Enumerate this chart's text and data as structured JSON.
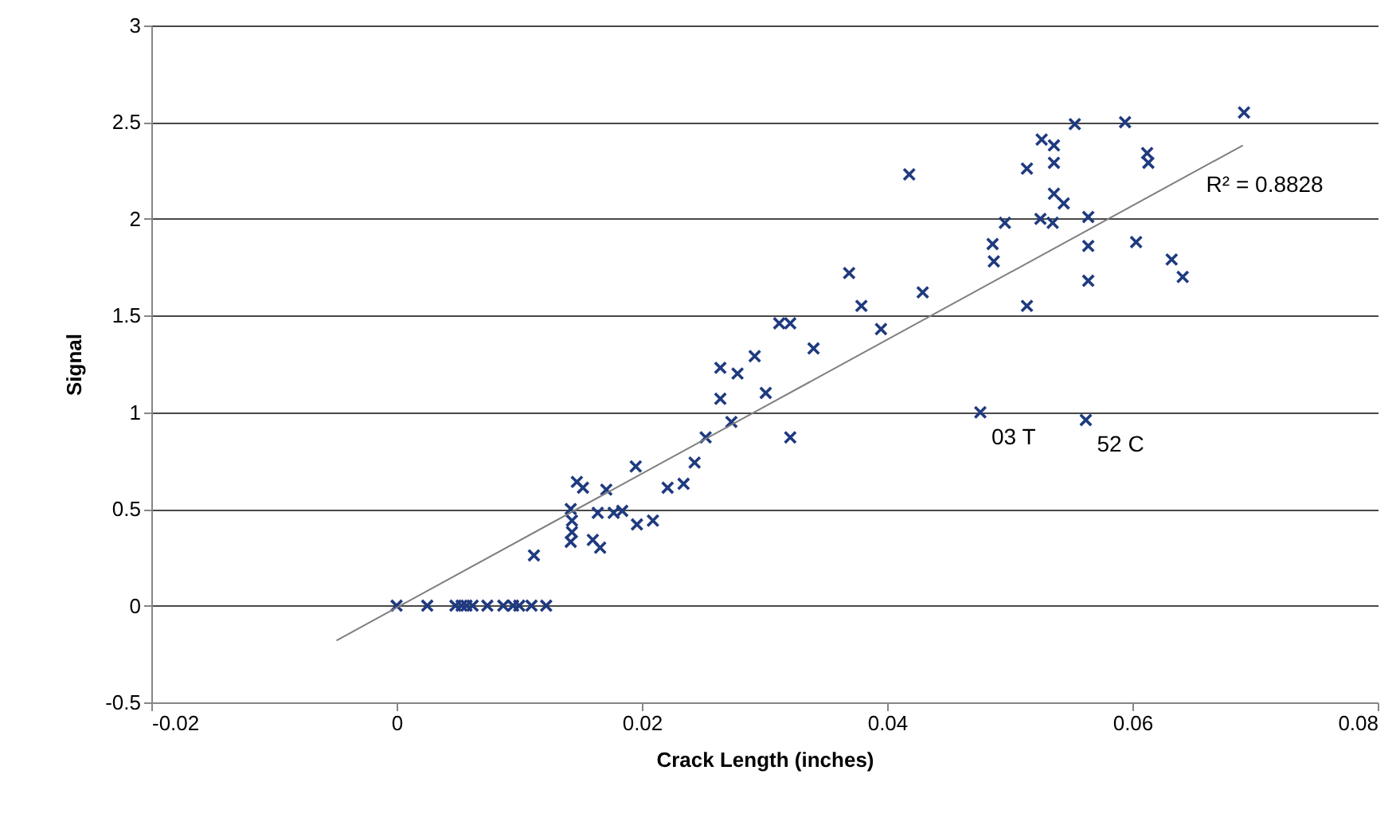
{
  "chart_data": {
    "type": "scatter",
    "xlabel": "Crack Length (inches)",
    "ylabel": "Signal",
    "xlim": [
      -0.02,
      0.08
    ],
    "xticks": [
      -0.02,
      0,
      0.02,
      0.04,
      0.06,
      0.08
    ],
    "ylim": [
      -0.5,
      3
    ],
    "yticks": [
      -0.5,
      0,
      0.5,
      1,
      1.5,
      2,
      2.5,
      3
    ],
    "grid": "y",
    "annotations": [
      "R² = 0.8828",
      {
        "text": "03 T",
        "x": 0.0476,
        "y": 1.0
      },
      {
        "text": "52 C",
        "x": 0.0562,
        "y": 0.96
      }
    ],
    "series": [
      {
        "marker": "cross",
        "color": "#1f3a7f",
        "x": [
          0,
          0.0025,
          0.0048,
          0.0053,
          0.0057,
          0.0062,
          0.0074,
          0.0087,
          0.0095,
          0.01,
          0.011,
          0.0122,
          0.0112,
          0.0142,
          0.0143,
          0.0143,
          0.0142,
          0.0147,
          0.0152,
          0.016,
          0.0164,
          0.0166,
          0.0171,
          0.0177,
          0.0184,
          0.0195,
          0.0196,
          0.0209,
          0.0221,
          0.0234,
          0.0243,
          0.0252,
          0.0264,
          0.0264,
          0.0273,
          0.0278,
          0.0292,
          0.0301,
          0.0312,
          0.0321,
          0.0321,
          0.034,
          0.0369,
          0.0379,
          0.0395,
          0.0418,
          0.0429,
          0.0476,
          0.0562,
          0.0526,
          0.0536,
          0.0553,
          0.0594,
          0.0691,
          0.0514,
          0.0536,
          0.0612,
          0.0613,
          0.0536,
          0.0544,
          0.0496,
          0.0525,
          0.0535,
          0.0564,
          0.0486,
          0.0487,
          0.0564,
          0.0603,
          0.0632,
          0.0641,
          0.0564,
          0.0514
        ],
        "values": [
          0,
          0,
          0,
          0,
          0,
          0,
          0,
          0,
          0,
          0,
          0,
          0,
          0.26,
          0.5,
          0.44,
          0.38,
          0.33,
          0.64,
          0.61,
          0.34,
          0.48,
          0.3,
          0.6,
          0.48,
          0.49,
          0.72,
          0.42,
          0.44,
          0.61,
          0.63,
          0.74,
          0.87,
          1.23,
          1.07,
          0.95,
          1.2,
          1.29,
          1.1,
          1.46,
          1.46,
          0.87,
          1.33,
          1.72,
          1.55,
          1.43,
          2.23,
          1.62,
          1.0,
          0.96,
          2.41,
          2.38,
          2.49,
          2.5,
          2.55,
          2.26,
          2.29,
          2.34,
          2.29,
          2.13,
          2.08,
          1.98,
          2.0,
          1.98,
          2.01,
          1.87,
          1.78,
          1.86,
          1.88,
          1.79,
          1.7,
          1.68,
          1.55
        ]
      },
      {
        "type": "line",
        "color": "#7f7f7f",
        "x": [
          -0.0049,
          0.069
        ],
        "values": [
          -0.18,
          2.38
        ]
      }
    ]
  }
}
